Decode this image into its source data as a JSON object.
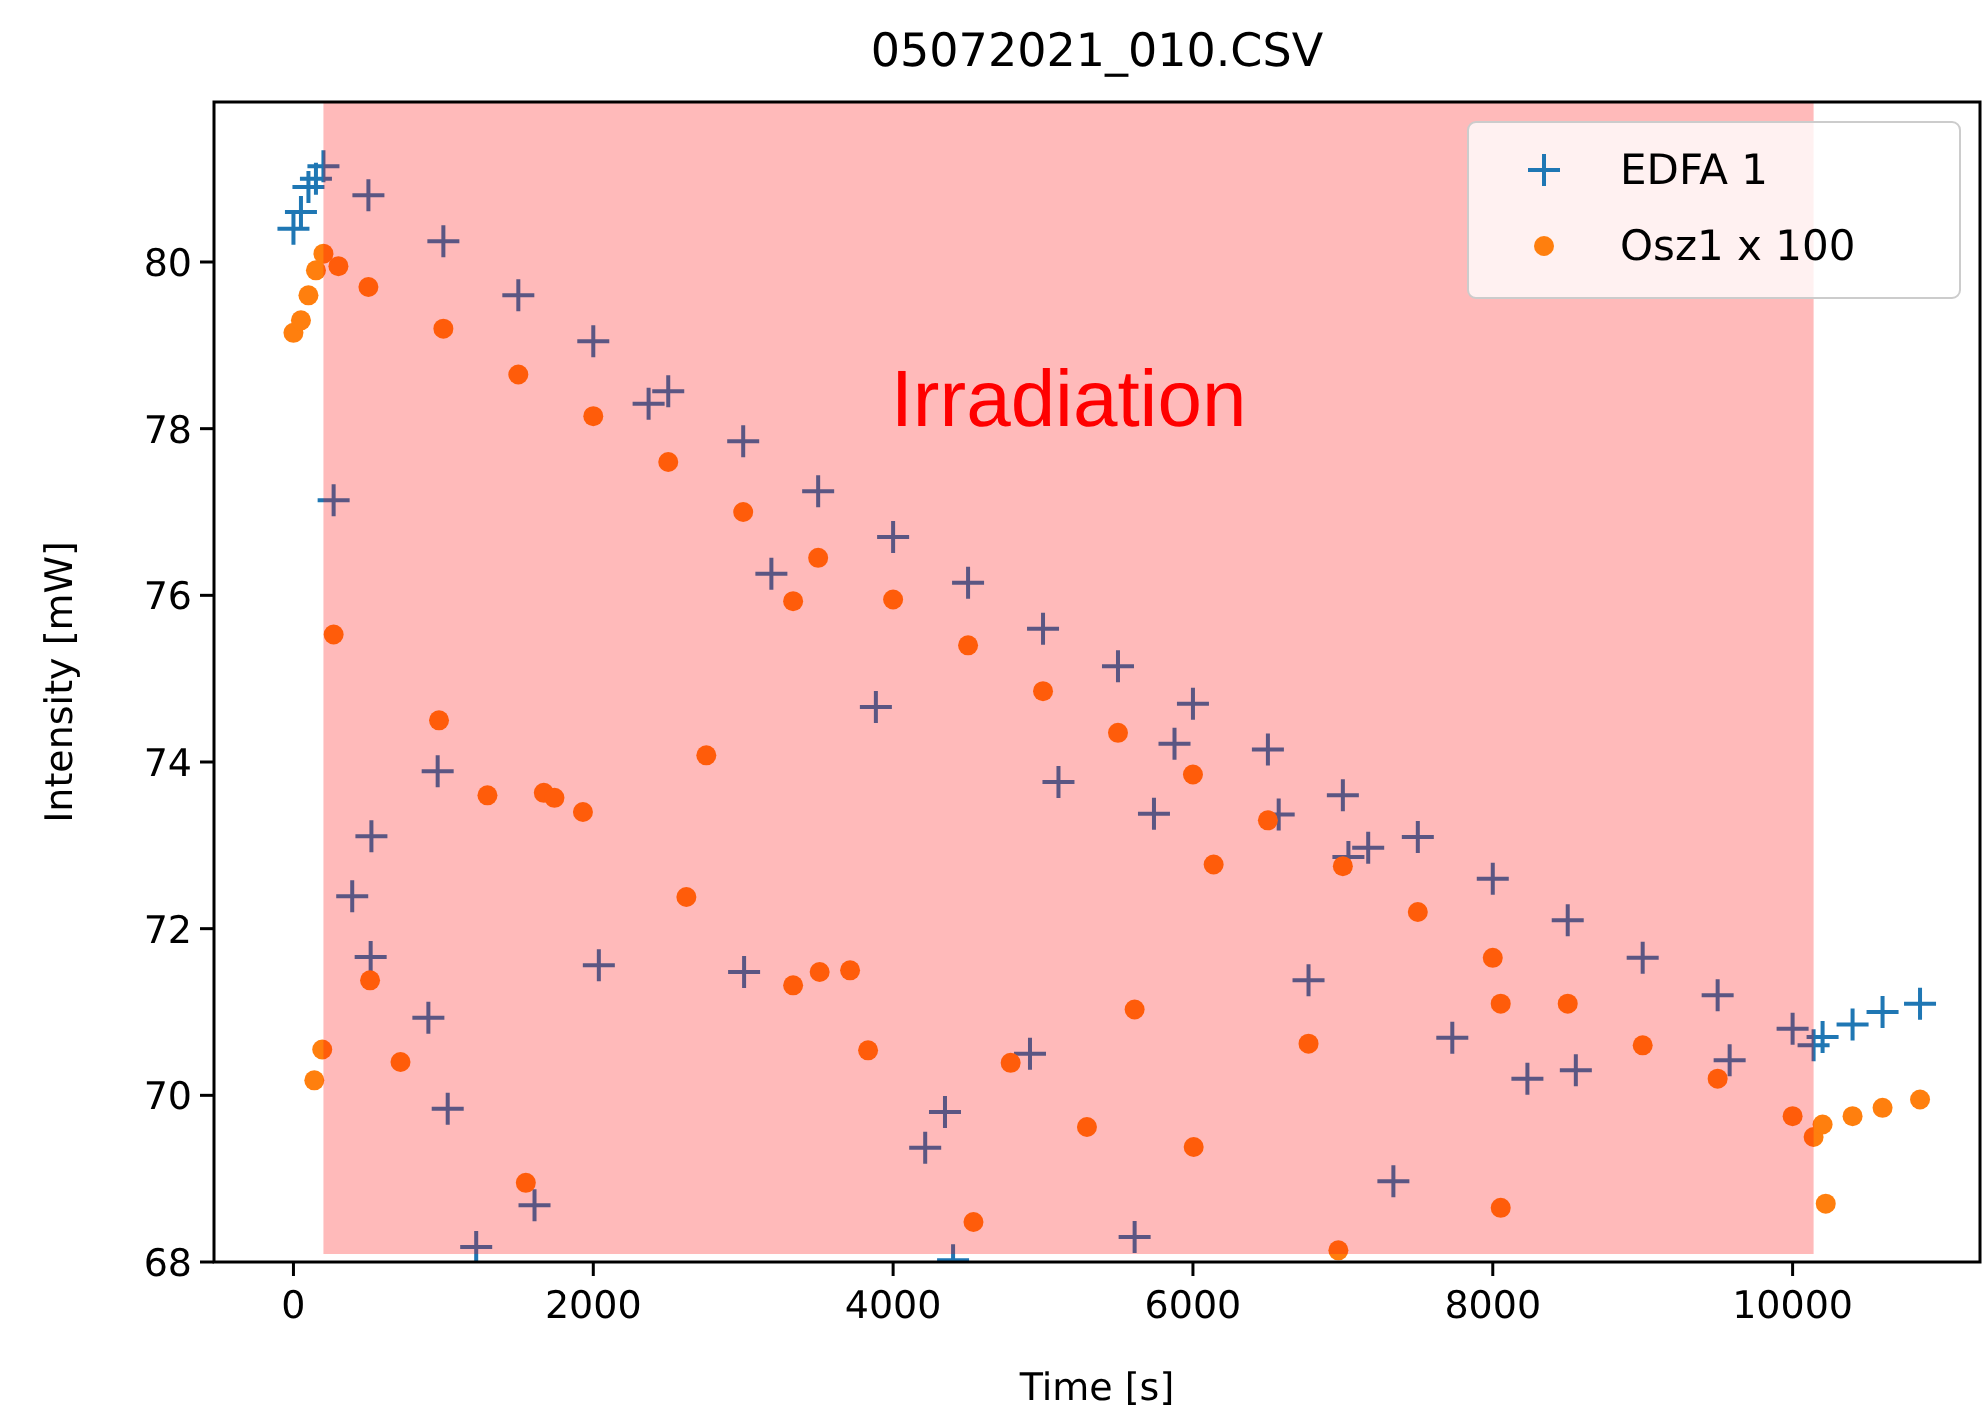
{
  "chart_data": {
    "type": "scatter",
    "title": "05072021_010.CSV",
    "xlabel": "Time [s]",
    "ylabel": "Intensity [mW]",
    "xlim": [
      -530,
      11250
    ],
    "ylim": [
      68,
      81.92
    ],
    "xticks": [
      0,
      2000,
      4000,
      6000,
      8000,
      10000
    ],
    "yticks": [
      68,
      70,
      72,
      74,
      76,
      78,
      80
    ],
    "grid": false,
    "legend": "top right",
    "bands": [
      {
        "axis": "x",
        "from": 200,
        "to": 10140,
        "label": "Irradiation",
        "color": "#ff0000"
      }
    ],
    "series": [
      {
        "name": "EDFA 1",
        "color": "#1f77b4",
        "marker": "cross",
        "x": [
          0,
          50,
          100,
          150,
          200,
          500,
          1000,
          1500,
          2000,
          2500,
          3000,
          3500,
          4000,
          4500,
          5000,
          5500,
          6000,
          6500,
          7000,
          7500,
          8000,
          8500,
          9000,
          9500,
          10000,
          10140,
          10200,
          10400,
          10600,
          10850,
          3885,
          5103,
          962,
          520,
          392,
          515,
          2037,
          3006,
          900,
          4913,
          1029,
          4346,
          4214,
          1608,
          1219,
          4400,
          268,
          2369,
          3188,
          5877,
          5740,
          6572,
          7037,
          7169,
          6771,
          7730,
          8231,
          8554,
          9580,
          7337,
          5611
        ],
        "values": [
          80.4,
          80.6,
          80.9,
          81.0,
          81.15,
          80.8,
          80.25,
          79.6,
          79.05,
          78.45,
          77.85,
          77.25,
          76.7,
          76.15,
          75.6,
          75.15,
          74.7,
          74.15,
          73.6,
          73.1,
          72.6,
          72.1,
          71.65,
          71.2,
          70.8,
          70.6,
          70.7,
          70.85,
          71.0,
          71.1,
          74.66,
          73.76,
          73.89,
          73.11,
          72.39,
          71.66,
          71.56,
          71.48,
          70.93,
          70.5,
          69.84,
          69.8,
          69.37,
          68.68,
          68.18,
          68.02,
          77.14,
          78.3,
          76.26,
          74.22,
          73.38,
          73.37,
          72.86,
          72.97,
          71.38,
          70.69,
          70.2,
          70.3,
          70.42,
          68.97,
          68.3
        ]
      },
      {
        "name": "Osz1 x 100",
        "color": "#ff7f0e",
        "marker": "circle",
        "x": [
          0,
          50,
          100,
          150,
          200,
          300,
          500,
          1000,
          1500,
          2000,
          2500,
          3000,
          3500,
          4000,
          4500,
          5000,
          5500,
          6000,
          6500,
          7000,
          7500,
          8000,
          8500,
          9000,
          9500,
          10000,
          10140,
          10200,
          10400,
          10600,
          10850,
          268,
          3333,
          971,
          2754,
          1294,
          1670,
          1741,
          1931,
          2621,
          511,
          3333,
          3510,
          3713,
          3833,
          192,
          139,
          714,
          4784,
          5293,
          1550,
          4536,
          5611,
          6138,
          6771,
          6005,
          8053,
          8053,
          6970,
          10221
        ],
        "values": [
          79.15,
          79.3,
          79.6,
          79.9,
          80.1,
          79.95,
          79.7,
          79.2,
          78.65,
          78.15,
          77.6,
          77.0,
          76.45,
          75.95,
          75.4,
          74.85,
          74.35,
          73.85,
          73.3,
          72.75,
          72.2,
          71.65,
          71.1,
          70.6,
          70.2,
          69.75,
          69.5,
          69.65,
          69.75,
          69.85,
          69.95,
          75.53,
          75.93,
          74.5,
          74.08,
          73.6,
          73.63,
          73.57,
          73.4,
          72.38,
          71.38,
          71.32,
          71.48,
          71.5,
          70.54,
          70.55,
          70.18,
          70.4,
          70.39,
          69.62,
          68.95,
          68.48,
          71.03,
          72.77,
          70.62,
          69.38,
          71.1,
          68.65,
          68.14,
          68.7
        ]
      }
    ]
  }
}
